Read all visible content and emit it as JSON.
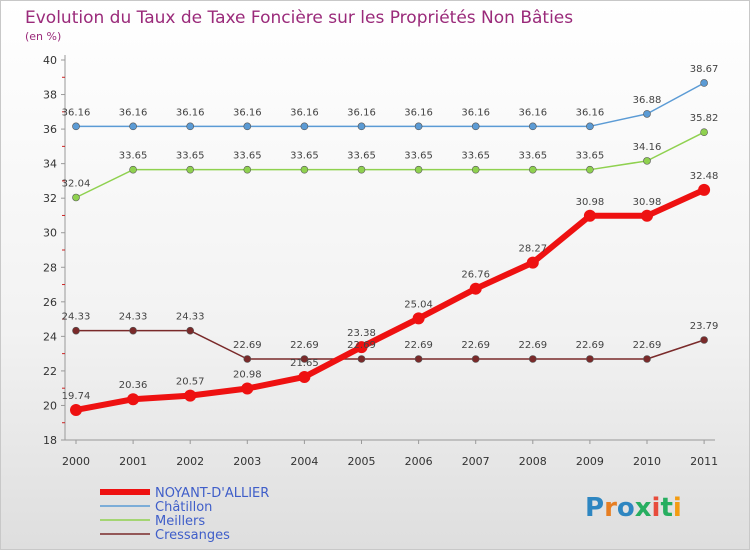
{
  "chart_data": {
    "type": "line",
    "title": "Evolution du Taux de Taxe Foncière sur les Propriétés Non Bâties",
    "subtitle": "(en %)",
    "x": [
      "2000",
      "2001",
      "2002",
      "2003",
      "2004",
      "2005",
      "2006",
      "2007",
      "2008",
      "2009",
      "2010",
      "2011"
    ],
    "ylim": [
      18,
      40
    ],
    "yticks": [
      18,
      20,
      22,
      24,
      26,
      28,
      30,
      32,
      34,
      36,
      38,
      40
    ],
    "series": [
      {
        "name": "Châtillon",
        "color": "#5b9bd5",
        "values": [
          36.16,
          36.16,
          36.16,
          36.16,
          36.16,
          36.16,
          36.16,
          36.16,
          36.16,
          36.16,
          36.88,
          38.67
        ],
        "labels": [
          "36.16",
          "36.16",
          "36.16",
          "36.16",
          "36.16",
          "36.16",
          "36.16",
          "36.16",
          "36.16",
          "36.16",
          "36.88",
          "38.67"
        ]
      },
      {
        "name": "Meillers",
        "color": "#8fd14f",
        "values": [
          32.04,
          33.65,
          33.65,
          33.65,
          33.65,
          33.65,
          33.65,
          33.65,
          33.65,
          33.65,
          34.16,
          35.82
        ],
        "labels": [
          "32.04",
          "33.65",
          "33.65",
          "33.65",
          "33.65",
          "33.65",
          "33.65",
          "33.65",
          "33.65",
          "33.65",
          "34.16",
          "35.82"
        ]
      },
      {
        "name": "Cressanges",
        "color": "#7a2a2a",
        "values": [
          24.33,
          24.33,
          24.33,
          22.69,
          22.69,
          22.69,
          22.69,
          22.69,
          22.69,
          22.69,
          22.69,
          23.79
        ],
        "labels": [
          "24.33",
          "24.33",
          "24.33",
          "22.69",
          "22.69",
          "22.69",
          "22.69",
          "22.69",
          "22.69",
          "22.69",
          "22.69",
          "23.79"
        ]
      },
      {
        "name": "NOYANT-D'ALLIER",
        "color": "#ee1111",
        "values": [
          19.74,
          20.36,
          20.57,
          20.98,
          21.65,
          23.38,
          25.04,
          26.76,
          28.27,
          30.98,
          30.98,
          32.48
        ],
        "labels": [
          "19.74",
          "20.36",
          "20.57",
          "20.98",
          "21.65",
          "23.38",
          "25.04",
          "26.76",
          "28.27",
          "30.98",
          "30.98",
          "32.48"
        ]
      }
    ],
    "legend": [
      {
        "name": "NOYANT-D'ALLIER",
        "color": "#ee1111",
        "text_color": "#3f5ec9"
      },
      {
        "name": "Châtillon",
        "color": "#5b9bd5",
        "text_color": "#3f5ec9"
      },
      {
        "name": "Meillers",
        "color": "#8fd14f",
        "text_color": "#3f5ec9"
      },
      {
        "name": "Cressanges",
        "color": "#7a2a2a",
        "text_color": "#3f5ec9"
      }
    ]
  },
  "logo": {
    "text": "Proxiti",
    "letters": [
      "P",
      "r",
      "o",
      "x",
      "i",
      "t",
      "i"
    ],
    "letter_colors": [
      "#2e86c1",
      "#e67e22",
      "#2e86c1",
      "#27ae60",
      "#e74c3c",
      "#27ae60",
      "#f39c12"
    ]
  },
  "colors": {
    "title": "#9a2a7a",
    "axis": "#999999"
  }
}
